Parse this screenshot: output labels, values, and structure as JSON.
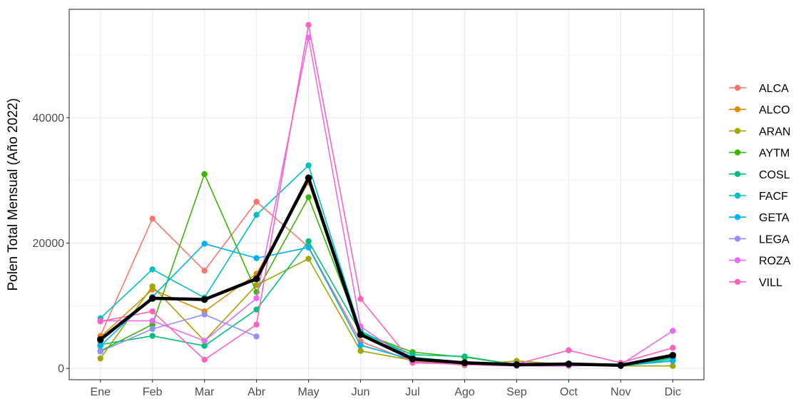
{
  "chart_data": {
    "type": "line",
    "title": "",
    "xlabel": "",
    "ylabel": "Polen Total Mensual (Año 2022)",
    "categories": [
      "Ene",
      "Feb",
      "Mar",
      "Abr",
      "May",
      "Jun",
      "Jul",
      "Ago",
      "Sep",
      "Oct",
      "Nov",
      "Dic"
    ],
    "ylim": [
      -1800,
      57300
    ],
    "yticks": [
      0,
      20000,
      40000
    ],
    "ytick_labels": [
      "0",
      "20000",
      "40000"
    ],
    "grid": true,
    "legend_position": "right",
    "series": [
      {
        "name": "ALCA",
        "color": "#F8766D",
        "values": [
          5200,
          23900,
          15600,
          26600,
          19400,
          4300,
          1100,
          800,
          600,
          600,
          500,
          1800
        ]
      },
      {
        "name": "ALCO",
        "color": "#D89000",
        "values": [
          5000,
          12600,
          9100,
          15100,
          29700,
          5300,
          1400,
          900,
          700,
          700,
          500,
          2000
        ]
      },
      {
        "name": "ARAN",
        "color": "#A3A500",
        "values": [
          1600,
          13100,
          4400,
          13300,
          17500,
          2800,
          1300,
          500,
          1200,
          600,
          400,
          400
        ]
      },
      {
        "name": "AYTM",
        "color": "#39B600",
        "values": [
          2800,
          7000,
          31000,
          12200,
          27300,
          5700,
          2600,
          1800,
          600,
          700,
          500,
          1800
        ]
      },
      {
        "name": "COSL",
        "color": "#00BF7D",
        "values": [
          3800,
          5200,
          3600,
          9400,
          20300,
          5700,
          2200,
          1900,
          600,
          600,
          400,
          1600
        ]
      },
      {
        "name": "FACF",
        "color": "#00BFC4",
        "values": [
          8000,
          15800,
          11300,
          24500,
          32400,
          6000,
          1800,
          1000,
          700,
          800,
          500,
          1300
        ]
      },
      {
        "name": "GETA",
        "color": "#00B0F6",
        "values": [
          3600,
          11400,
          19900,
          17600,
          19300,
          3700,
          1400,
          800,
          500,
          600,
          400,
          1200
        ]
      },
      {
        "name": "LEGA",
        "color": "#9590FF",
        "values": [
          2700,
          6300,
          8600,
          5100,
          null,
          null,
          null,
          null,
          null,
          null,
          null,
          null
        ]
      },
      {
        "name": "ROZA",
        "color": "#E76BF3",
        "values": [
          7600,
          7600,
          4400,
          11200,
          52800,
          6700,
          1000,
          600,
          400,
          400,
          600,
          6000
        ]
      },
      {
        "name": "VILL",
        "color": "#FF62BC",
        "values": [
          7500,
          9100,
          1400,
          7000,
          54800,
          11100,
          900,
          700,
          700,
          2900,
          900,
          3300
        ]
      }
    ],
    "mean_series": {
      "color": "#000000",
      "values": [
        4600,
        11200,
        11000,
        14300,
        30400,
        5400,
        1500,
        900,
        600,
        700,
        500,
        2100
      ]
    }
  }
}
